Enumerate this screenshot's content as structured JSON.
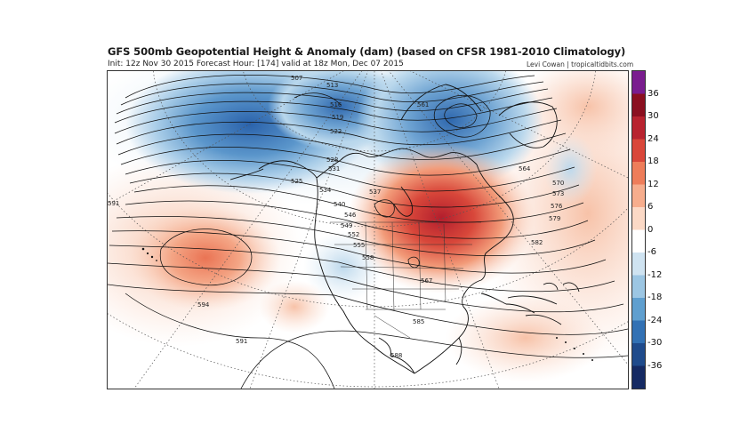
{
  "header": {
    "title": "GFS 500mb Geopotential Height & Anomaly (dam) (based on CFSR 1981-2010 Climatology)",
    "subtitle": "Init: 12z Nov 30 2015   Forecast Hour: [174]   valid at 18z Mon, Dec 07 2015",
    "credit": "Levi Cowan | tropicaltidbits.com"
  },
  "colorbar": {
    "ticks": [
      "36",
      "30",
      "24",
      "18",
      "12",
      "6",
      "0",
      "-6",
      "-12",
      "-18",
      "-24",
      "-30",
      "-36"
    ],
    "colors": [
      "#7a1d8f",
      "#8b1020",
      "#b8232f",
      "#d9473a",
      "#ee7d5a",
      "#f6ad8d",
      "#fbd9c6",
      "#ffffff",
      "#cfe3f1",
      "#9cc6e3",
      "#5f9fcf",
      "#3271b4",
      "#1f4b8c",
      "#152a63"
    ]
  },
  "contour_labels": [
    "507",
    "513",
    "516",
    "519",
    "522",
    "525",
    "528",
    "531",
    "534",
    "537",
    "540",
    "546",
    "549",
    "552",
    "555",
    "558",
    "561",
    "564",
    "567",
    "570",
    "573",
    "576",
    "579",
    "582",
    "585",
    "588",
    "591",
    "594"
  ]
}
